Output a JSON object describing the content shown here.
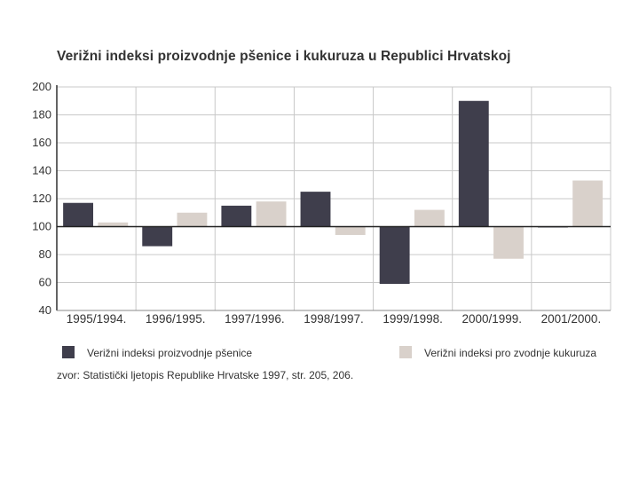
{
  "chart_data": {
    "type": "bar",
    "title": "Verižni indeksi proizvodnje pšenice i kukuruza u Republici Hrvatskoj",
    "categories": [
      "1995/1994.",
      "1996/1995.",
      "1997/1996.",
      "1998/1997.",
      "1999/1998.",
      "2000/1999.",
      "2001/2000."
    ],
    "series": [
      {
        "name": "Verižni indeksi proizvodnje pšenice",
        "values": [
          117,
          86,
          115,
          125,
          59,
          190,
          100
        ],
        "color": "#3f3e4c"
      },
      {
        "name": "Verižni indeksi pro zvodnje kukuruza",
        "values": [
          103,
          110,
          118,
          94,
          112,
          77,
          133
        ],
        "color": "#d9d1cb"
      }
    ],
    "baseline": 100,
    "ylim": [
      40,
      200
    ],
    "yticks": [
      "200",
      "180",
      "160",
      "140",
      "120",
      "100",
      "80",
      "60",
      "40"
    ],
    "grid": true,
    "legend_position": "bottom"
  },
  "source_note": "zvor: Statistički ljetopis Republike Hrvatske 1997, str. 205, 206."
}
